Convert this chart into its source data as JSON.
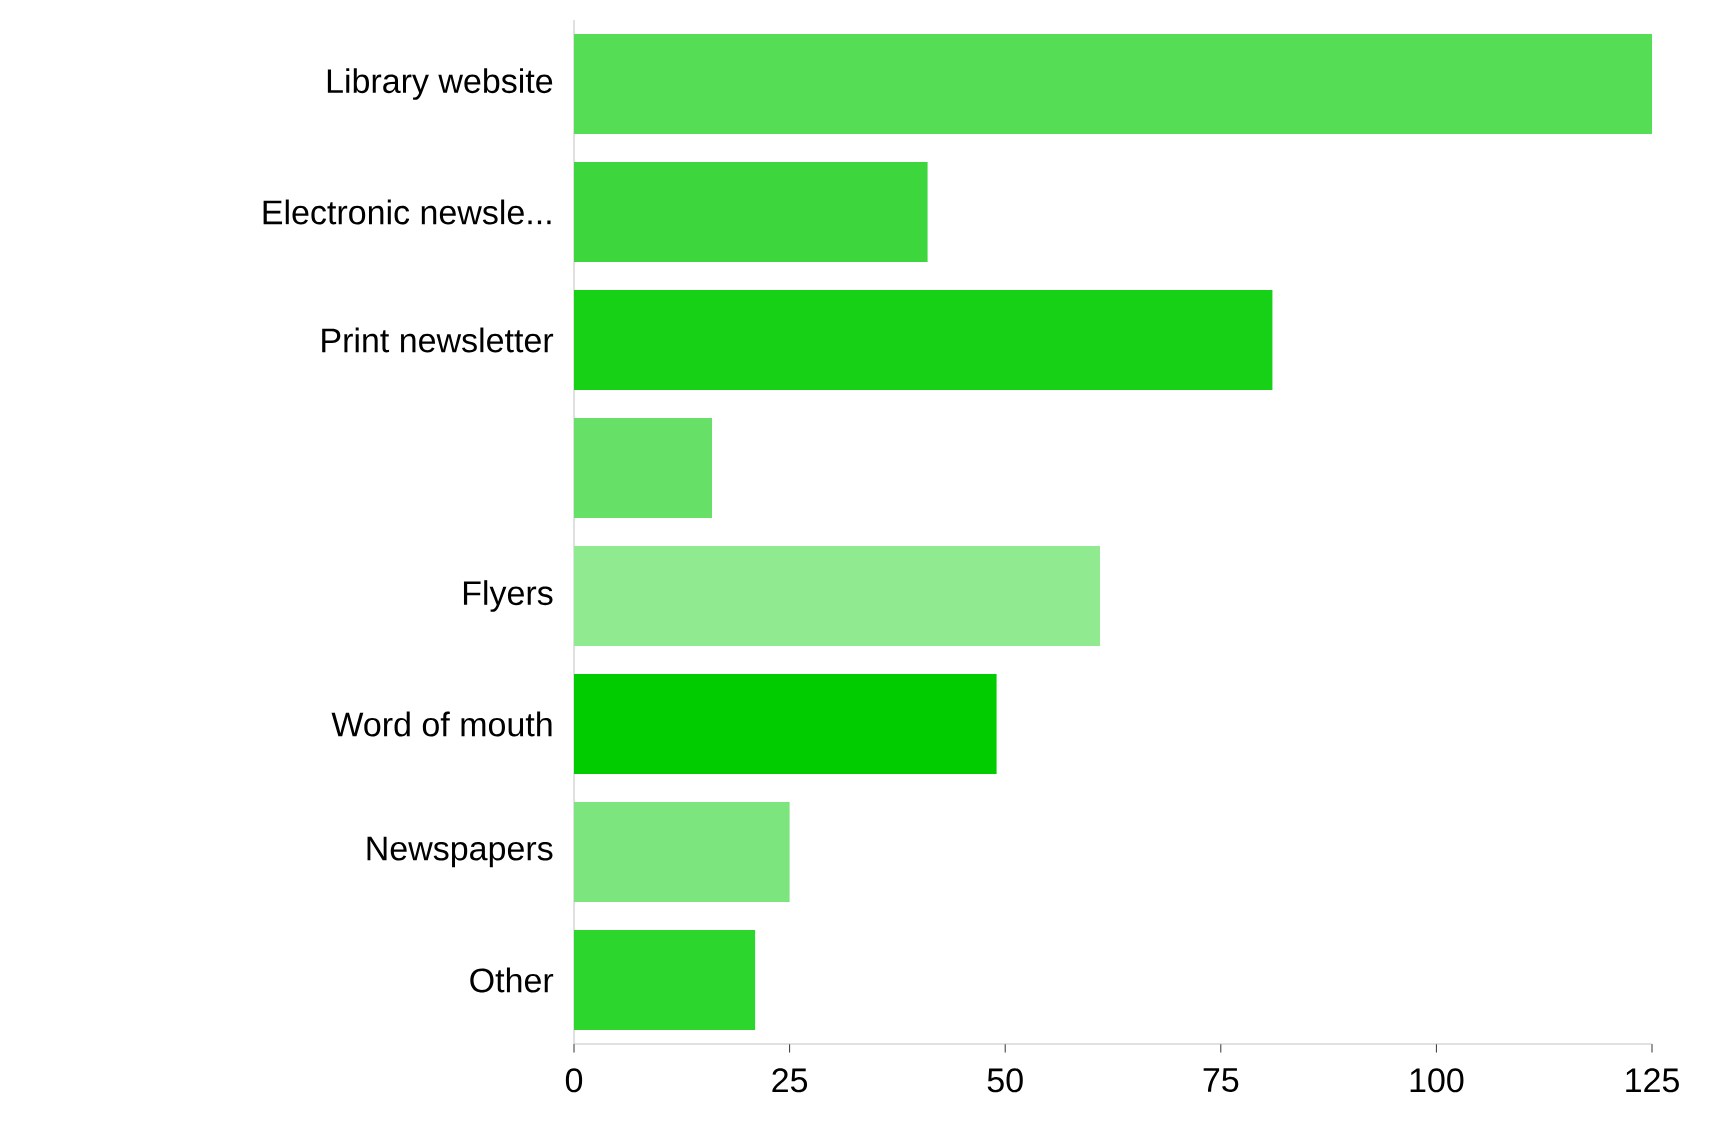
{
  "chart_data": {
    "type": "bar",
    "orientation": "horizontal",
    "categories": [
      "Library website",
      "Electronic newsle...",
      "Print newsletter",
      null,
      "Flyers",
      "Word of mouth",
      "Newspapers",
      "Other"
    ],
    "values": [
      125,
      41,
      81,
      16,
      61,
      49,
      25,
      21
    ],
    "colors": [
      "#55dd55",
      "#3dd63d",
      "#16d116",
      "#66e066",
      "#90ea90",
      "#00cc00",
      "#7de57d",
      "#2dd62d"
    ],
    "xlim": [
      0,
      125
    ],
    "xticks": [
      0,
      25,
      50,
      75,
      100,
      125
    ]
  }
}
